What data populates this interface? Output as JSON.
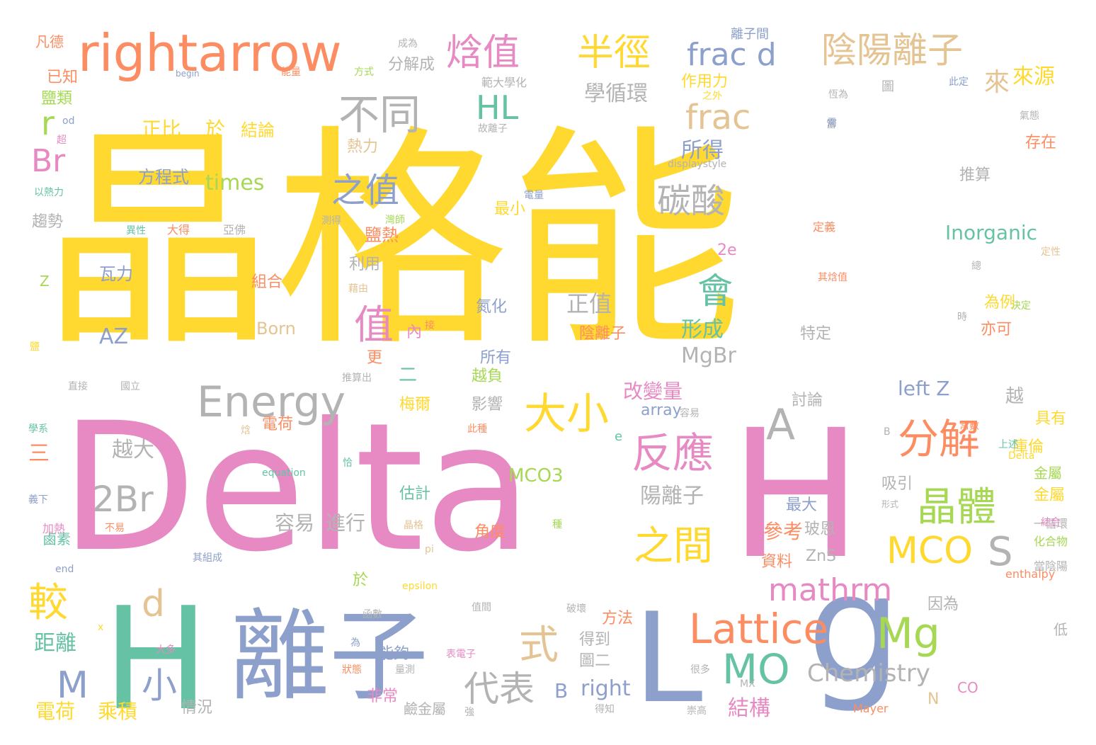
{
  "palette": {
    "yellow": "#ffd92f",
    "pink": "#e78ac3",
    "slate": "#8da0cb",
    "teal": "#66c2a5",
    "orange": "#fc8d62",
    "lime": "#a6d854",
    "tan": "#e5c494",
    "gray": "#b3b3b3"
  },
  "words": [
    {
      "text": "晶格能",
      "color": "yellow"
    },
    {
      "text": "Delta",
      "color": "pink"
    },
    {
      "text": "H",
      "color": "pink"
    },
    {
      "text": "H",
      "color": "teal"
    },
    {
      "text": "離子",
      "color": "slate"
    },
    {
      "text": "L",
      "color": "slate"
    },
    {
      "text": "g",
      "color": "slate"
    },
    {
      "text": "rightarrow",
      "color": "orange"
    },
    {
      "text": "焓值",
      "color": "pink"
    },
    {
      "text": "半徑",
      "color": "yellow"
    },
    {
      "text": "frac d",
      "color": "slate"
    },
    {
      "text": "陰陽離子",
      "color": "tan"
    },
    {
      "text": "不同",
      "color": "gray"
    },
    {
      "text": "HL",
      "color": "teal"
    },
    {
      "text": "frac",
      "color": "tan"
    },
    {
      "text": "r",
      "color": "lime"
    },
    {
      "text": "Br",
      "color": "pink"
    },
    {
      "text": "之值",
      "color": "slate"
    },
    {
      "text": "碳酸",
      "color": "gray"
    },
    {
      "text": "會",
      "color": "teal"
    },
    {
      "text": "值",
      "color": "pink"
    },
    {
      "text": "Energy",
      "color": "gray"
    },
    {
      "text": "大小",
      "color": "yellow"
    },
    {
      "text": "反應",
      "color": "pink"
    },
    {
      "text": "分解",
      "color": "orange"
    },
    {
      "text": "A",
      "color": "gray"
    },
    {
      "text": "晶體",
      "color": "lime"
    },
    {
      "text": "2Br",
      "color": "gray"
    },
    {
      "text": "之間",
      "color": "yellow"
    },
    {
      "text": "MCO",
      "color": "yellow"
    },
    {
      "text": "S",
      "color": "gray"
    },
    {
      "text": "較",
      "color": "yellow"
    },
    {
      "text": "d",
      "color": "tan"
    },
    {
      "text": "式",
      "color": "tan"
    },
    {
      "text": "Lattice",
      "color": "orange"
    },
    {
      "text": "Mg",
      "color": "lime"
    },
    {
      "text": "mathrm",
      "color": "pink"
    },
    {
      "text": "MO",
      "color": "teal"
    },
    {
      "text": "M",
      "color": "slate"
    },
    {
      "text": "小",
      "color": "slate"
    },
    {
      "text": "代表",
      "color": "gray"
    },
    {
      "text": "Chemistry",
      "color": "gray"
    },
    {
      "text": "B",
      "color": "slate"
    },
    {
      "text": "right",
      "color": "slate"
    },
    {
      "text": "結構",
      "color": "pink"
    },
    {
      "text": "電荷",
      "color": "yellow"
    },
    {
      "text": "乘積",
      "color": "yellow"
    },
    {
      "text": "距離",
      "color": "teal"
    },
    {
      "text": "學循環",
      "color": "gray"
    },
    {
      "text": "來源",
      "color": "yellow"
    },
    {
      "text": "來",
      "color": "tan"
    },
    {
      "text": "所得",
      "color": "slate"
    },
    {
      "text": "正比",
      "color": "yellow"
    },
    {
      "text": "於",
      "color": "yellow"
    },
    {
      "text": "結論",
      "color": "yellow"
    },
    {
      "text": "方程式",
      "color": "slate"
    },
    {
      "text": "times",
      "color": "lime"
    },
    {
      "text": "MgBr",
      "color": "gray"
    },
    {
      "text": "形成",
      "color": "teal"
    },
    {
      "text": "Inorganic",
      "color": "teal"
    },
    {
      "text": "正值",
      "color": "gray"
    },
    {
      "text": "AZ",
      "color": "slate"
    },
    {
      "text": "Born",
      "color": "tan"
    },
    {
      "text": "瓦力",
      "color": "slate"
    },
    {
      "text": "組合",
      "color": "orange"
    },
    {
      "text": "陰離子",
      "color": "orange"
    },
    {
      "text": "改變量",
      "color": "pink"
    },
    {
      "text": "陽離子",
      "color": "gray"
    },
    {
      "text": "left Z",
      "color": "slate"
    },
    {
      "text": "參考",
      "color": "orange"
    },
    {
      "text": "容易",
      "color": "gray"
    },
    {
      "text": "進行",
      "color": "gray"
    },
    {
      "text": "越大",
      "color": "gray"
    },
    {
      "text": "二",
      "color": "teal"
    },
    {
      "text": "三",
      "color": "orange"
    },
    {
      "text": "MCO3",
      "color": "lime"
    },
    {
      "text": "array",
      "color": "slate"
    },
    {
      "text": "ZnS",
      "color": "gray"
    },
    {
      "text": "所有",
      "color": "slate"
    },
    {
      "text": "越負",
      "color": "lime"
    },
    {
      "text": "影響",
      "color": "gray"
    },
    {
      "text": "梅爾",
      "color": "yellow"
    },
    {
      "text": "電荷",
      "color": "orange"
    },
    {
      "text": "估計",
      "color": "teal"
    },
    {
      "text": "角度",
      "color": "orange"
    },
    {
      "text": "方法",
      "color": "orange"
    },
    {
      "text": "得到",
      "color": "gray"
    },
    {
      "text": "圖二",
      "color": "gray"
    },
    {
      "text": "能夠",
      "color": "slate"
    },
    {
      "text": "非常",
      "color": "pink"
    },
    {
      "text": "情況",
      "color": "gray"
    },
    {
      "text": "鹼金屬",
      "color": "gray"
    },
    {
      "text": "最大",
      "color": "slate"
    },
    {
      "text": "玻恩",
      "color": "gray"
    },
    {
      "text": "討論",
      "color": "gray"
    },
    {
      "text": "資料",
      "color": "orange"
    },
    {
      "text": "因為",
      "color": "gray"
    },
    {
      "text": "具有",
      "color": "yellow"
    },
    {
      "text": "庫倫",
      "color": "yellow"
    },
    {
      "text": "金屬",
      "color": "yellow"
    },
    {
      "text": "吸引",
      "color": "gray"
    },
    {
      "text": "越",
      "color": "gray"
    },
    {
      "text": "推算",
      "color": "gray"
    },
    {
      "text": "存在",
      "color": "orange"
    },
    {
      "text": "特定",
      "color": "gray"
    },
    {
      "text": "為例",
      "color": "yellow"
    },
    {
      "text": "亦可",
      "color": "orange"
    },
    {
      "text": "作用力",
      "color": "yellow"
    },
    {
      "text": "離子間",
      "color": "slate"
    },
    {
      "text": "分解成",
      "color": "gray"
    },
    {
      "text": "鹽熱",
      "color": "orange"
    },
    {
      "text": "利用",
      "color": "gray"
    },
    {
      "text": "最小",
      "color": "yellow"
    },
    {
      "text": "熱力",
      "color": "tan"
    },
    {
      "text": "氮化",
      "color": "slate"
    },
    {
      "text": "內",
      "color": "pink"
    },
    {
      "text": "更",
      "color": "orange"
    },
    {
      "text": "2e",
      "color": "pink"
    },
    {
      "text": "鹽類",
      "color": "lime"
    },
    {
      "text": "已知",
      "color": "orange"
    },
    {
      "text": "凡德",
      "color": "orange"
    },
    {
      "text": "趨勢",
      "color": "gray"
    },
    {
      "text": "鹵素",
      "color": "teal"
    },
    {
      "text": "於",
      "color": "lime"
    },
    {
      "text": "Z",
      "color": "lime"
    },
    {
      "text": "N",
      "color": "tan"
    },
    {
      "text": "CO",
      "color": "pink"
    },
    {
      "text": "低",
      "color": "gray"
    },
    {
      "text": "金屬",
      "color": "lime"
    },
    {
      "text": "一循環",
      "color": "gray"
    },
    {
      "text": "化合物",
      "color": "lime"
    },
    {
      "text": "當陰陽",
      "color": "gray"
    },
    {
      "text": "enthalpy",
      "color": "orange"
    },
    {
      "text": "Mayer",
      "color": "orange"
    },
    {
      "text": "epsilon",
      "color": "yellow"
    },
    {
      "text": "equation",
      "color": "teal"
    },
    {
      "text": "displaystyle",
      "color": "gray"
    },
    {
      "text": "begin",
      "color": "slate"
    },
    {
      "text": "end",
      "color": "slate"
    },
    {
      "text": "範大學化",
      "color": "gray"
    },
    {
      "text": "之外",
      "color": "yellow"
    },
    {
      "text": "恆為",
      "color": "gray"
    },
    {
      "text": "圖",
      "color": "gray"
    },
    {
      "text": "此定",
      "color": "slate"
    },
    {
      "text": "定義",
      "color": "orange"
    },
    {
      "text": "定性",
      "color": "tan"
    },
    {
      "text": "其焓值",
      "color": "orange"
    },
    {
      "text": "決定",
      "color": "lime"
    },
    {
      "text": "上述",
      "color": "teal"
    },
    {
      "text": "常數",
      "color": "orange"
    },
    {
      "text": "形式",
      "color": "gray"
    },
    {
      "text": "結合",
      "color": "pink"
    },
    {
      "text": "容易",
      "color": "gray"
    },
    {
      "text": "此種",
      "color": "orange"
    },
    {
      "text": "其組成",
      "color": "slate"
    },
    {
      "text": "大得",
      "color": "orange"
    },
    {
      "text": "亞佛",
      "color": "gray"
    },
    {
      "text": "異性",
      "color": "teal"
    },
    {
      "text": "測得",
      "color": "gray"
    },
    {
      "text": "灣師",
      "color": "lime"
    },
    {
      "text": "電量",
      "color": "slate"
    },
    {
      "text": "藉由",
      "color": "tan"
    },
    {
      "text": "直接",
      "color": "gray"
    },
    {
      "text": "國立",
      "color": "gray"
    },
    {
      "text": "推算出",
      "color": "gray"
    },
    {
      "text": "晶格",
      "color": "tan"
    },
    {
      "text": "不易",
      "color": "orange"
    },
    {
      "text": "加熱",
      "color": "pink"
    },
    {
      "text": "義下",
      "color": "slate"
    },
    {
      "text": "學系",
      "color": "teal"
    },
    {
      "text": "焓",
      "color": "tan"
    },
    {
      "text": "恰",
      "color": "teal"
    },
    {
      "text": "種",
      "color": "lime"
    },
    {
      "text": "pi",
      "color": "tan"
    },
    {
      "text": "x",
      "color": "yellow"
    },
    {
      "text": "大多",
      "color": "pink"
    },
    {
      "text": "為",
      "color": "slate"
    },
    {
      "text": "狀態",
      "color": "orange"
    },
    {
      "text": "量測",
      "color": "gray"
    },
    {
      "text": "表電子",
      "color": "pink"
    },
    {
      "text": "很多",
      "color": "gray"
    },
    {
      "text": "MX",
      "color": "gray"
    },
    {
      "text": "得知",
      "color": "gray"
    },
    {
      "text": "崇高",
      "color": "gray"
    },
    {
      "text": "強",
      "color": "gray"
    },
    {
      "text": "函數",
      "color": "gray"
    },
    {
      "text": "值間",
      "color": "gray"
    },
    {
      "text": "破壞",
      "color": "gray"
    },
    {
      "text": "B",
      "color": "gray"
    },
    {
      "text": "Delta",
      "color": "yellow"
    },
    {
      "text": "氣態",
      "color": "gray"
    },
    {
      "text": "時",
      "color": "gray"
    },
    {
      "text": "當",
      "color": "gray"
    },
    {
      "text": "以熱力",
      "color": "teal"
    },
    {
      "text": "鹽",
      "color": "yellow"
    },
    {
      "text": "e",
      "color": "teal"
    },
    {
      "text": "l",
      "color": "gray"
    },
    {
      "text": "接",
      "color": "orange"
    },
    {
      "text": "od",
      "color": "slate"
    },
    {
      "text": "超",
      "color": "pink"
    },
    {
      "text": "方式",
      "color": "lime"
    },
    {
      "text": "能量",
      "color": "orange"
    },
    {
      "text": "成為",
      "color": "gray"
    },
    {
      "text": "故離子",
      "color": "gray"
    },
    {
      "text": "需",
      "color": "slate"
    },
    {
      "text": "總",
      "color": "gray"
    }
  ]
}
